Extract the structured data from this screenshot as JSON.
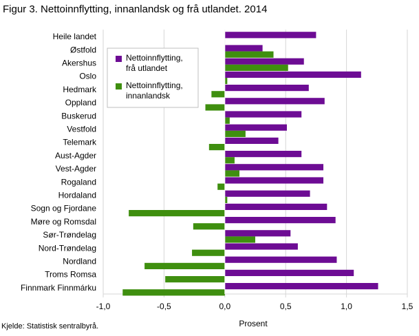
{
  "title": "Figur 3. Nettoinnflytting, innanlandsk og frå utlandet. 2014",
  "source": "Kjelde: Statistisk sentralbyrå.",
  "chart_data": {
    "type": "bar",
    "orientation": "horizontal",
    "title": "Figur 3. Nettoinnflytting, innanlandsk og frå utlandet. 2014",
    "xlabel": "Prosent",
    "ylabel": "",
    "xlim": [
      -1.0,
      1.5
    ],
    "xticks": [
      -1.0,
      -0.5,
      0.0,
      0.5,
      1.0,
      1.5
    ],
    "xtick_labels": [
      "-1,0",
      "-0,5",
      "0,0",
      "0,5",
      "1,0",
      "1,5"
    ],
    "grid": true,
    "legend_position": "top-left",
    "categories": [
      "Heile landet",
      "Østfold",
      "Akershus",
      "Oslo",
      "Hedmark",
      "Oppland",
      "Buskerud",
      "Vestfold",
      "Telemark",
      "Aust-Agder",
      "Vest-Agder",
      "Rogaland",
      "Hordaland",
      "Sogn og Fjordane",
      "Møre og Romsdal",
      "Sør-Trøndelag",
      "Nord-Trøndelag",
      "Nordland",
      "Troms Romsa",
      "Finnmark Finnmárku"
    ],
    "series": [
      {
        "name": "Nettoinnflytting, frå utlandet",
        "legend_lines": [
          "Nettoinnflytting,",
          "frå utlandet"
        ],
        "color": "#6d0c94",
        "values": [
          0.75,
          0.31,
          0.65,
          1.12,
          0.69,
          0.82,
          0.63,
          0.51,
          0.44,
          0.63,
          0.81,
          0.81,
          0.7,
          0.84,
          0.91,
          0.54,
          0.6,
          0.92,
          1.06,
          1.26
        ]
      },
      {
        "name": "Nettoinnflytting, innanlandsk",
        "legend_lines": [
          "Nettoinnflytting,",
          "innanlandsk"
        ],
        "color": "#3f8f0f",
        "values": [
          0.0,
          0.4,
          0.52,
          0.02,
          -0.11,
          -0.16,
          0.04,
          0.17,
          -0.13,
          0.08,
          0.12,
          -0.06,
          0.02,
          -0.79,
          -0.26,
          0.25,
          -0.27,
          -0.66,
          -0.49,
          -0.84
        ]
      }
    ]
  }
}
